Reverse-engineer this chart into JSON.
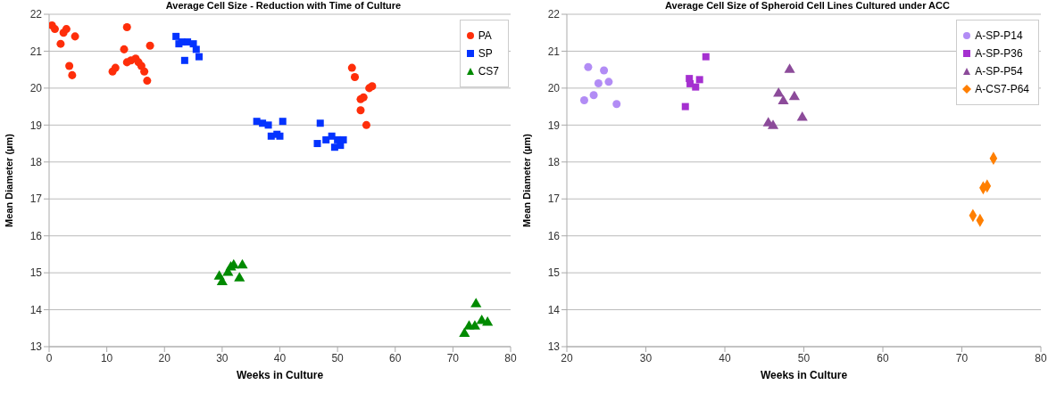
{
  "chart_data": [
    {
      "type": "scatter",
      "title": "Average Cell Size - Reduction with Time of Culture",
      "xlabel": "Weeks in Culture",
      "ylabel": "Mean Diameter (µm)",
      "xlim": [
        0,
        80
      ],
      "xticks": [
        0,
        10,
        20,
        30,
        40,
        50,
        60,
        70,
        80
      ],
      "ylim": [
        13,
        22
      ],
      "yticks": [
        13,
        14,
        15,
        16,
        17,
        18,
        19,
        20,
        21,
        22
      ],
      "grid": "y",
      "legend": "top right",
      "series": [
        {
          "name": "PA",
          "color": "#fe2e0a",
          "marker": "circle",
          "x": [
            0.5,
            1,
            2,
            2.5,
            3,
            3.5,
            4,
            4.5,
            11,
            11.5,
            13,
            13.5,
            13.5,
            14.2,
            15,
            15.5,
            16,
            16.5,
            17,
            17.5,
            52.5,
            53,
            54,
            54,
            54.5,
            55,
            55.5,
            56
          ],
          "values": [
            21.7,
            21.6,
            21.2,
            21.5,
            21.6,
            20.6,
            20.35,
            21.4,
            20.45,
            20.55,
            21.05,
            21.65,
            20.7,
            20.75,
            20.8,
            20.7,
            20.6,
            20.45,
            20.2,
            21.15,
            20.55,
            20.3,
            19.4,
            19.7,
            19.75,
            19.0,
            20.0,
            20.05
          ]
        },
        {
          "name": "SP",
          "color": "#0433ff",
          "marker": "square",
          "x": [
            22,
            22.5,
            23,
            23.5,
            24,
            25,
            25.5,
            26,
            36,
            37,
            38,
            38.5,
            39.5,
            40,
            40.5,
            46.5,
            47,
            48,
            49,
            49.5,
            50,
            50.5,
            51
          ],
          "values": [
            21.4,
            21.2,
            21.25,
            20.75,
            21.25,
            21.2,
            21.05,
            20.85,
            19.1,
            19.05,
            19.0,
            18.7,
            18.75,
            18.7,
            19.1,
            18.5,
            19.05,
            18.6,
            18.7,
            18.4,
            18.6,
            18.45,
            18.6
          ]
        },
        {
          "name": "CS7",
          "color": "#008a00",
          "marker": "triangle",
          "x": [
            29.5,
            30,
            31,
            31.5,
            32,
            33,
            33.5,
            72,
            72.8,
            73.8,
            74,
            75,
            76
          ],
          "values": [
            14.9,
            14.75,
            15.0,
            15.15,
            15.2,
            14.85,
            15.2,
            13.35,
            13.55,
            13.55,
            14.15,
            13.7,
            13.65
          ]
        }
      ]
    },
    {
      "type": "scatter",
      "title": "Average Cell Size of Spheroid Cell Lines Cultured under ACC",
      "xlabel": "Weeks in Culture",
      "ylabel": "Mean Diameter (µm)",
      "xlim": [
        20,
        80
      ],
      "xticks": [
        20,
        30,
        40,
        50,
        60,
        70,
        80
      ],
      "ylim": [
        13,
        22
      ],
      "yticks": [
        13,
        14,
        15,
        16,
        17,
        18,
        19,
        20,
        21,
        22
      ],
      "grid": "y",
      "legend": "top right",
      "series": [
        {
          "name": "A-SP-P14",
          "color": "#b28cf5",
          "marker": "circle",
          "x": [
            22.7,
            24.7,
            24.0,
            25.3,
            23.4,
            22.2,
            26.3
          ],
          "values": [
            20.57,
            20.48,
            20.13,
            20.17,
            19.81,
            19.67,
            19.57
          ]
        },
        {
          "name": "A-SP-P36",
          "color": "#a530d0",
          "marker": "square",
          "x": [
            37.6,
            35.5,
            36.8,
            35.6,
            36.3,
            35.0
          ],
          "values": [
            20.85,
            20.26,
            20.23,
            20.12,
            20.03,
            19.5
          ]
        },
        {
          "name": "A-SP-P54",
          "color": "#8c4b9a",
          "marker": "triangle",
          "x": [
            48.2,
            46.8,
            47.4,
            48.8,
            49.8,
            45.5,
            46.1
          ],
          "values": [
            20.5,
            19.85,
            19.65,
            19.76,
            19.2,
            19.05,
            18.98
          ]
        },
        {
          "name": "A-CS7-P64",
          "color": "#ff7f00",
          "marker": "diamond",
          "x": [
            74.0,
            73.2,
            72.7,
            71.4,
            72.3
          ],
          "values": [
            18.1,
            17.35,
            17.3,
            16.55,
            16.42
          ]
        }
      ]
    }
  ]
}
